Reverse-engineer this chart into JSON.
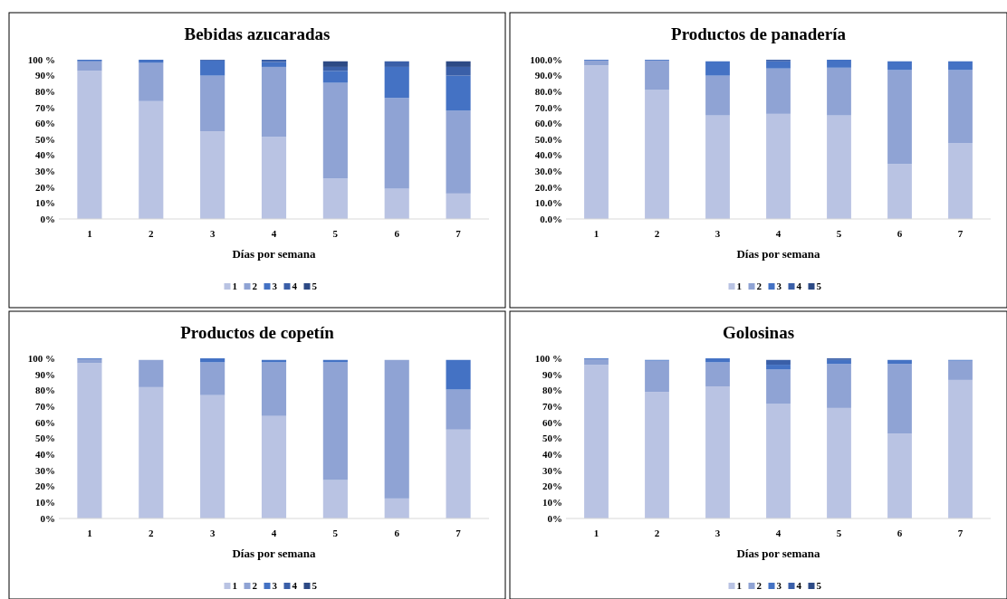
{
  "chart_data": [
    {
      "type": "bar",
      "stacked": true,
      "title": "Bebidas azucaradas",
      "xlabel": "Días por semana",
      "categories": [
        "1",
        "2",
        "3",
        "4",
        "5",
        "6",
        "7"
      ],
      "legend": "bottom",
      "ylim": [
        0,
        100
      ],
      "yticks": [
        {
          "value": 0,
          "label": "0%"
        },
        {
          "value": 10,
          "label": "10%"
        },
        {
          "value": 20,
          "label": "20%"
        },
        {
          "value": 30,
          "label": "30%"
        },
        {
          "value": 40,
          "label": "40%"
        },
        {
          "value": 50,
          "label": "50%"
        },
        {
          "value": 60,
          "label": "60%"
        },
        {
          "value": 70,
          "label": "70%"
        },
        {
          "value": 80,
          "label": "80%"
        },
        {
          "value": 90,
          "label": "90%"
        },
        {
          "value": 100,
          "label": "100 %"
        }
      ],
      "series": [
        {
          "name": "1",
          "color": "#b9c3e3",
          "values": [
            93,
            74,
            55,
            51.5,
            25.5,
            19,
            16
          ]
        },
        {
          "name": "2",
          "color": "#8fa3d4",
          "values": [
            6,
            24,
            35,
            44,
            60,
            57,
            52
          ]
        },
        {
          "name": "3",
          "color": "#4472c4",
          "values": [
            1,
            2,
            9.5,
            3,
            7.5,
            19.5,
            22
          ]
        },
        {
          "name": "4",
          "color": "#3a5fa8",
          "values": [
            0,
            0,
            0.5,
            1.5,
            2.5,
            3.5,
            5.5
          ]
        },
        {
          "name": "5",
          "color": "#2d4a85",
          "values": [
            0,
            0,
            0,
            0,
            3.5,
            0,
            3.5
          ]
        }
      ]
    },
    {
      "type": "bar",
      "stacked": true,
      "title": "Productos de panadería",
      "xlabel": "Días por semana",
      "categories": [
        "1",
        "2",
        "3",
        "4",
        "5",
        "6",
        "7"
      ],
      "legend": "bottom",
      "ylim": [
        0,
        100
      ],
      "yticks": [
        {
          "value": 0,
          "label": "0.0%"
        },
        {
          "value": 10,
          "label": "10.0%"
        },
        {
          "value": 20,
          "label": "20.0%"
        },
        {
          "value": 30,
          "label": "30.0%"
        },
        {
          "value": 40,
          "label": "40.0%"
        },
        {
          "value": 50,
          "label": "50.0%"
        },
        {
          "value": 60,
          "label": "60.0%"
        },
        {
          "value": 70,
          "label": "70.0%"
        },
        {
          "value": 80,
          "label": "80.0%"
        },
        {
          "value": 90,
          "label": "90.0%"
        },
        {
          "value": 100,
          "label": "100.0%"
        }
      ],
      "series": [
        {
          "name": "1",
          "color": "#b9c3e3",
          "values": [
            96.5,
            81,
            65,
            66,
            65,
            34.5,
            47.5
          ]
        },
        {
          "name": "2",
          "color": "#8fa3d4",
          "values": [
            3,
            18.5,
            25,
            28.5,
            30,
            59,
            46
          ]
        },
        {
          "name": "3",
          "color": "#4472c4",
          "values": [
            0.5,
            0.5,
            9,
            4.5,
            5,
            5.5,
            5.5
          ]
        },
        {
          "name": "4",
          "color": "#3a5fa8",
          "values": [
            0,
            0,
            0,
            1,
            0,
            0,
            0
          ]
        },
        {
          "name": "5",
          "color": "#2d4a85",
          "values": [
            0,
            0,
            0,
            0,
            0,
            0,
            0
          ]
        }
      ]
    },
    {
      "type": "bar",
      "stacked": true,
      "title": "Productos de copetín",
      "xlabel": "Días por semana",
      "categories": [
        "1",
        "2",
        "3",
        "4",
        "5",
        "6",
        "7"
      ],
      "legend": "bottom",
      "ylim": [
        0,
        100
      ],
      "yticks": [
        {
          "value": 0,
          "label": "0%"
        },
        {
          "value": 10,
          "label": "10%"
        },
        {
          "value": 20,
          "label": "20%"
        },
        {
          "value": 30,
          "label": "30%"
        },
        {
          "value": 40,
          "label": "40%"
        },
        {
          "value": 50,
          "label": "50%"
        },
        {
          "value": 60,
          "label": "60%"
        },
        {
          "value": 70,
          "label": "70%"
        },
        {
          "value": 80,
          "label": "80%"
        },
        {
          "value": 90,
          "label": "90%"
        },
        {
          "value": 100,
          "label": "100 %"
        }
      ],
      "series": [
        {
          "name": "1",
          "color": "#b9c3e3",
          "values": [
            97,
            82,
            77,
            64,
            24,
            12.5,
            55.5
          ]
        },
        {
          "name": "2",
          "color": "#8fa3d4",
          "values": [
            2.5,
            17,
            20.5,
            33.5,
            73.5,
            86.5,
            25
          ]
        },
        {
          "name": "3",
          "color": "#4472c4",
          "values": [
            0.5,
            0,
            2.5,
            1.5,
            1.5,
            0,
            18.5
          ]
        },
        {
          "name": "4",
          "color": "#3a5fa8",
          "values": [
            0,
            0,
            0,
            0,
            0,
            0,
            0
          ]
        },
        {
          "name": "5",
          "color": "#2d4a85",
          "values": [
            0,
            0,
            0,
            0,
            0,
            0,
            0
          ]
        }
      ]
    },
    {
      "type": "bar",
      "stacked": true,
      "title": "Golosinas",
      "xlabel": "Días por semana",
      "categories": [
        "1",
        "2",
        "3",
        "4",
        "5",
        "6",
        "7"
      ],
      "legend": "bottom",
      "ylim": [
        0,
        100
      ],
      "yticks": [
        {
          "value": 0,
          "label": "0%"
        },
        {
          "value": 10,
          "label": "10%"
        },
        {
          "value": 20,
          "label": "20%"
        },
        {
          "value": 30,
          "label": "30%"
        },
        {
          "value": 40,
          "label": "40%"
        },
        {
          "value": 50,
          "label": "50%"
        },
        {
          "value": 60,
          "label": "60%"
        },
        {
          "value": 70,
          "label": "70%"
        },
        {
          "value": 80,
          "label": "80%"
        },
        {
          "value": 90,
          "label": "90%"
        },
        {
          "value": 100,
          "label": "100 %"
        }
      ],
      "series": [
        {
          "name": "1",
          "color": "#b9c3e3",
          "values": [
            96,
            79,
            82.5,
            71.5,
            69,
            53,
            86.5
          ]
        },
        {
          "name": "2",
          "color": "#8fa3d4",
          "values": [
            3.5,
            19.5,
            15,
            21.5,
            27.5,
            43.5,
            12
          ]
        },
        {
          "name": "3",
          "color": "#4472c4",
          "values": [
            0.5,
            0.5,
            2.5,
            3,
            2.5,
            2.5,
            0.5
          ]
        },
        {
          "name": "4",
          "color": "#3a5fa8",
          "values": [
            0,
            0,
            0,
            3,
            1,
            0,
            0
          ]
        },
        {
          "name": "5",
          "color": "#2d4a85",
          "values": [
            0,
            0,
            0,
            0,
            0,
            0,
            0
          ]
        }
      ]
    }
  ]
}
